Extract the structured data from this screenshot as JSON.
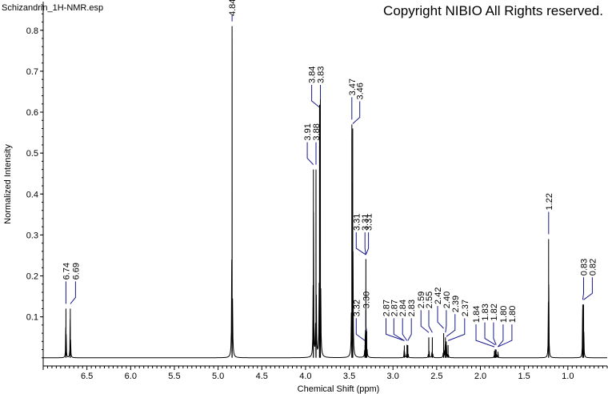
{
  "file_title": "Schizandrin_1H-NMR.esp",
  "copyright": "Copyright NIBIO All Rights reserved.",
  "chart_data": {
    "type": "line",
    "xlabel": "Chemical Shift (ppm)",
    "ylabel": "Normalized Intensity",
    "xlim": [
      7.0,
      0.55
    ],
    "ylim": [
      -0.02,
      0.87
    ],
    "x_reversed": true,
    "x_ticks": [
      "6.5",
      "6.0",
      "5.5",
      "5.0",
      "4.5",
      "4.0",
      "3.5",
      "3.0",
      "2.5",
      "2.0",
      "1.5",
      "1.0"
    ],
    "y_ticks": [
      "0.1",
      "0.2",
      "0.3",
      "0.4",
      "0.5",
      "0.6",
      "0.7",
      "0.8"
    ],
    "peaks": [
      {
        "ppm": 6.74,
        "intensity": 0.12
      },
      {
        "ppm": 6.69,
        "intensity": 0.12
      },
      {
        "ppm": 4.84,
        "intensity": 0.81
      },
      {
        "ppm": 3.91,
        "intensity": 0.46
      },
      {
        "ppm": 3.88,
        "intensity": 0.46
      },
      {
        "ppm": 3.84,
        "intensity": 0.6
      },
      {
        "ppm": 3.83,
        "intensity": 0.6
      },
      {
        "ppm": 3.47,
        "intensity": 0.57
      },
      {
        "ppm": 3.46,
        "intensity": 0.56
      },
      {
        "ppm": 3.32,
        "intensity": 0.03
      },
      {
        "ppm": 3.31,
        "intensity": 0.24
      },
      {
        "ppm": 3.3,
        "intensity": 0.05
      },
      {
        "ppm": 2.87,
        "intensity": 0.03
      },
      {
        "ppm": 2.84,
        "intensity": 0.03
      },
      {
        "ppm": 2.83,
        "intensity": 0.03
      },
      {
        "ppm": 2.59,
        "intensity": 0.05
      },
      {
        "ppm": 2.55,
        "intensity": 0.05
      },
      {
        "ppm": 2.42,
        "intensity": 0.06
      },
      {
        "ppm": 2.4,
        "intensity": 0.05
      },
      {
        "ppm": 2.39,
        "intensity": 0.04
      },
      {
        "ppm": 2.37,
        "intensity": 0.03
      },
      {
        "ppm": 1.84,
        "intensity": 0.015
      },
      {
        "ppm": 1.83,
        "intensity": 0.02
      },
      {
        "ppm": 1.82,
        "intensity": 0.02
      },
      {
        "ppm": 1.8,
        "intensity": 0.015
      },
      {
        "ppm": 1.22,
        "intensity": 0.29
      },
      {
        "ppm": 0.83,
        "intensity": 0.13
      },
      {
        "ppm": 0.82,
        "intensity": 0.13
      }
    ],
    "peak_labels": [
      {
        "text": "6.74",
        "ppm": 6.74,
        "label_ppm": 6.74
      },
      {
        "text": "6.69",
        "ppm": 6.69,
        "label_ppm": 6.63
      },
      {
        "text": "4.84",
        "ppm": 4.84,
        "label_ppm": 4.84
      },
      {
        "text": "3.91",
        "ppm": 3.91,
        "label_ppm": 3.98
      },
      {
        "text": "3.88",
        "ppm": 3.88,
        "label_ppm": 3.88
      },
      {
        "text": "3.84",
        "ppm": 3.84,
        "label_ppm": 3.93
      },
      {
        "text": "3.83",
        "ppm": 3.83,
        "label_ppm": 3.83
      },
      {
        "text": "3.47",
        "ppm": 3.47,
        "label_ppm": 3.47
      },
      {
        "text": "3.46",
        "ppm": 3.46,
        "label_ppm": 3.38
      },
      {
        "text": "3.32",
        "ppm": 3.32,
        "label_ppm": 3.42
      },
      {
        "text": "3.31",
        "ppm": 3.31,
        "label_ppm": 3.42
      },
      {
        "text": "3.31",
        "ppm": 3.31,
        "label_ppm": 3.32
      },
      {
        "text": "3.31",
        "ppm": 3.31,
        "label_ppm": 3.28
      },
      {
        "text": "3.30",
        "ppm": 3.3,
        "label_ppm": 3.31
      },
      {
        "text": "2.87",
        "ppm": 2.87,
        "label_ppm": 3.08
      },
      {
        "text": "2.87",
        "ppm": 2.87,
        "label_ppm": 2.99
      },
      {
        "text": "2.84",
        "ppm": 2.84,
        "label_ppm": 2.89
      },
      {
        "text": "2.83",
        "ppm": 2.83,
        "label_ppm": 2.79
      },
      {
        "text": "2.59",
        "ppm": 2.59,
        "label_ppm": 2.68
      },
      {
        "text": "2.55",
        "ppm": 2.55,
        "label_ppm": 2.59
      },
      {
        "text": "2.42",
        "ppm": 2.42,
        "label_ppm": 2.49
      },
      {
        "text": "2.40",
        "ppm": 2.4,
        "label_ppm": 2.39
      },
      {
        "text": "2.39",
        "ppm": 2.39,
        "label_ppm": 2.29
      },
      {
        "text": "2.37",
        "ppm": 2.37,
        "label_ppm": 2.18
      },
      {
        "text": "1.84",
        "ppm": 1.84,
        "label_ppm": 2.05
      },
      {
        "text": "1.83",
        "ppm": 1.83,
        "label_ppm": 1.95
      },
      {
        "text": "1.82",
        "ppm": 1.82,
        "label_ppm": 1.85
      },
      {
        "text": "1.80",
        "ppm": 1.8,
        "label_ppm": 1.74
      },
      {
        "text": "1.80",
        "ppm": 1.8,
        "label_ppm": 1.64
      },
      {
        "text": "1.22",
        "ppm": 1.22,
        "label_ppm": 1.22
      },
      {
        "text": "0.83",
        "ppm": 0.83,
        "label_ppm": 0.82
      },
      {
        "text": "0.82",
        "ppm": 0.82,
        "label_ppm": 0.72
      }
    ],
    "grid": false,
    "legend": "none"
  },
  "colors": {
    "spectrum": "#000000",
    "labels": "#000000",
    "leaders": "#1a1a8c",
    "axes": "#000000"
  }
}
